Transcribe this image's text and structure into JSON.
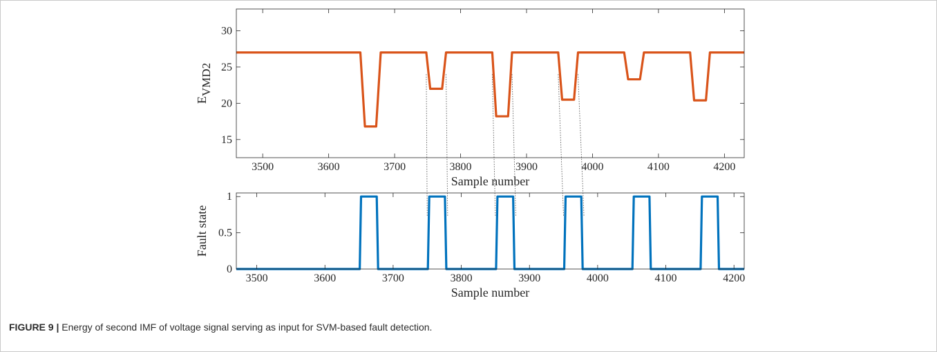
{
  "caption": {
    "label": "FIGURE 9 |",
    "text": " Energy of second IMF of voltage signal serving as input for SVM-based fault detection."
  },
  "colors": {
    "energy_line": "#d95319",
    "fault_line": "#0072bd",
    "axis": "#262626",
    "guide": "#555555"
  },
  "chart_data": [
    {
      "type": "line",
      "xlabel": "Sample number",
      "ylabel": "E",
      "ylabel_sub": "VMD2",
      "xlim": [
        3460,
        4230
      ],
      "ylim": [
        12.5,
        33
      ],
      "xticks": [
        3500,
        3600,
        3700,
        3800,
        3900,
        4000,
        4100,
        4200
      ],
      "yticks": [
        15,
        20,
        25,
        30
      ],
      "grid": false,
      "series": [
        {
          "x": [
            3460,
            3648,
            3655,
            3672,
            3679,
            3748,
            3754,
            3772,
            3778,
            3848,
            3854,
            3872,
            3878,
            3948,
            3954,
            3972,
            3978,
            4048,
            4054,
            4072,
            4078,
            4148,
            4154,
            4172,
            4178,
            4230
          ],
          "y": [
            27,
            27,
            16.8,
            16.8,
            27,
            27,
            22,
            22,
            27,
            27,
            18.2,
            18.2,
            27,
            27,
            20.5,
            20.5,
            27,
            27,
            23.3,
            23.3,
            27,
            27,
            20.4,
            20.4,
            27,
            27
          ]
        }
      ]
    },
    {
      "type": "line",
      "xlabel": "Sample number",
      "ylabel": "Fault state",
      "xlim": [
        3470,
        4215
      ],
      "ylim": [
        0,
        1.05
      ],
      "xticks": [
        3500,
        3600,
        3700,
        3800,
        3900,
        4000,
        4100,
        4200
      ],
      "yticks": [
        0,
        0.5,
        1
      ],
      "ytick_labels": [
        "0",
        "0.5",
        "1"
      ],
      "grid": false,
      "series": [
        {
          "x": [
            3470,
            3651,
            3653,
            3676,
            3678,
            3751,
            3753,
            3776,
            3778,
            3851,
            3853,
            3876,
            3878,
            3951,
            3953,
            3976,
            3978,
            4051,
            4053,
            4076,
            4078,
            4151,
            4153,
            4176,
            4178,
            4215
          ],
          "y": [
            0,
            0,
            1,
            1,
            0,
            0,
            1,
            1,
            0,
            0,
            1,
            1,
            0,
            0,
            1,
            1,
            0,
            0,
            1,
            1,
            0,
            0,
            1,
            1,
            0,
            0
          ]
        }
      ]
    }
  ]
}
